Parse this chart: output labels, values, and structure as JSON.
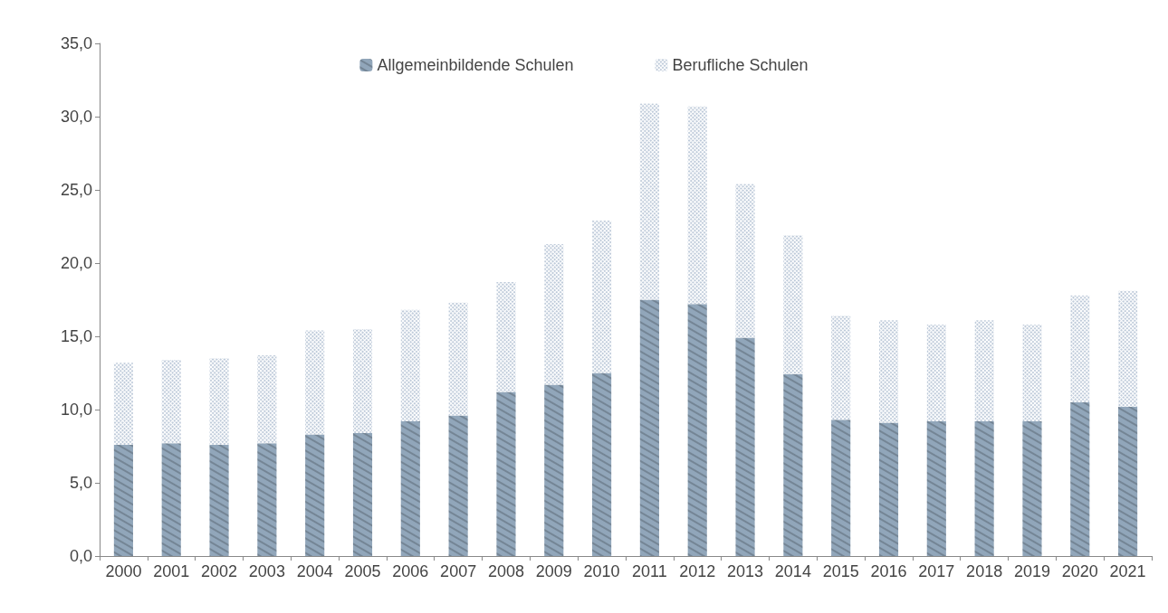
{
  "chart_data": {
    "type": "bar",
    "stacked": true,
    "categories": [
      "2000",
      "2001",
      "2002",
      "2003",
      "2004",
      "2005",
      "2006",
      "2007",
      "2008",
      "2009",
      "2010",
      "2011",
      "2012",
      "2013",
      "2014",
      "2015",
      "2016",
      "2017",
      "2018",
      "2019",
      "2020",
      "2021"
    ],
    "series": [
      {
        "name": "Allgemeinbildende Schulen",
        "color": "#91a6ba",
        "values": [
          7.6,
          7.7,
          7.6,
          7.7,
          8.3,
          8.4,
          9.2,
          9.6,
          11.2,
          11.7,
          12.5,
          17.5,
          17.2,
          14.9,
          12.4,
          9.3,
          9.1,
          9.2,
          9.2,
          9.2,
          10.5,
          10.2
        ]
      },
      {
        "name": "Berufliche Schulen",
        "color": "#6d87aa",
        "values": [
          5.6,
          5.7,
          5.9,
          6.0,
          7.1,
          7.1,
          7.6,
          7.7,
          7.5,
          9.6,
          10.4,
          13.4,
          13.5,
          10.5,
          9.5,
          7.1,
          7.0,
          6.6,
          6.9,
          6.6,
          7.3,
          7.9
        ]
      }
    ],
    "ylim": [
      0,
      35
    ],
    "yticks": [
      {
        "value": 0,
        "label": "0,0"
      },
      {
        "value": 5,
        "label": "5,0"
      },
      {
        "value": 10,
        "label": "10,0"
      },
      {
        "value": 15,
        "label": "15,0"
      },
      {
        "value": 20,
        "label": "20,0"
      },
      {
        "value": 25,
        "label": "25,0"
      },
      {
        "value": 30,
        "label": "30,0"
      },
      {
        "value": 35,
        "label": "35,0"
      }
    ],
    "legend": "top",
    "grid": false
  }
}
